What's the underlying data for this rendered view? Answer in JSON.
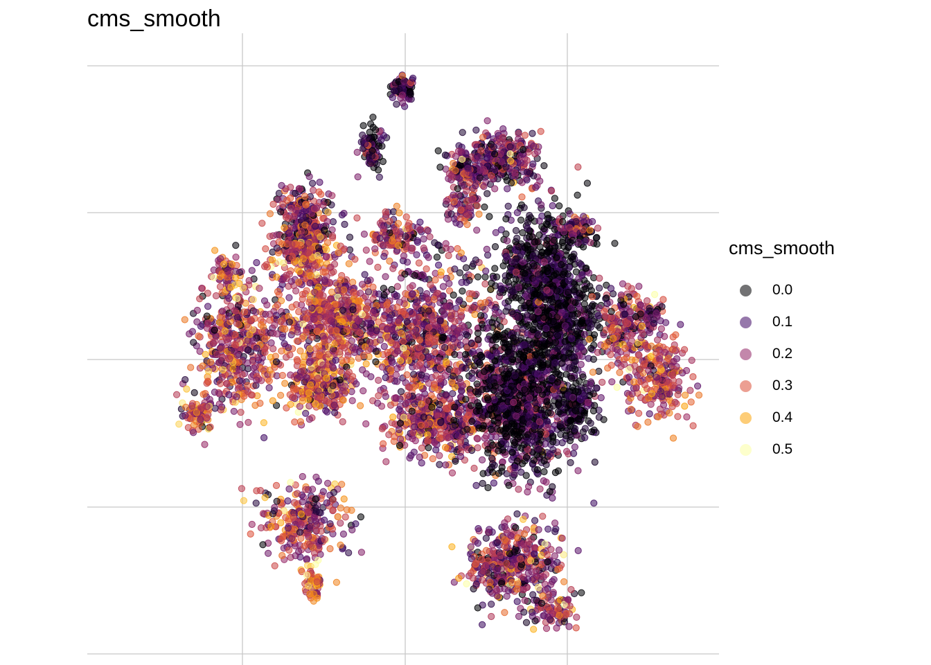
{
  "chart_data": {
    "type": "scatter",
    "title": "cms_smooth",
    "xlabel": "",
    "ylabel": "",
    "grid": true,
    "axis_ticks_labels": false,
    "color_variable": "cms_smooth",
    "point_alpha": 0.55,
    "legend": {
      "title": "cms_smooth",
      "position": "right",
      "entries": [
        {
          "label": "0.0",
          "value": 0.0,
          "color": "#000004"
        },
        {
          "label": "0.1",
          "value": 0.1,
          "color": "#420a68"
        },
        {
          "label": "0.2",
          "value": 0.2,
          "color": "#932667"
        },
        {
          "label": "0.3",
          "value": 0.3,
          "color": "#dd513a"
        },
        {
          "label": "0.4",
          "value": 0.4,
          "color": "#fca50a"
        },
        {
          "label": "0.5",
          "value": 0.5,
          "color": "#fcffa4"
        }
      ]
    },
    "clusters": [
      {
        "cx": 0.235,
        "cy": 0.505,
        "rx": 0.065,
        "ry": 0.105,
        "n": 420,
        "mean": 0.22
      },
      {
        "cx": 0.175,
        "cy": 0.61,
        "rx": 0.025,
        "ry": 0.035,
        "n": 80,
        "mean": 0.25
      },
      {
        "cx": 0.37,
        "cy": 0.565,
        "rx": 0.06,
        "ry": 0.055,
        "n": 260,
        "mean": 0.27
      },
      {
        "cx": 0.385,
        "cy": 0.46,
        "rx": 0.085,
        "ry": 0.075,
        "n": 520,
        "mean": 0.24
      },
      {
        "cx": 0.345,
        "cy": 0.79,
        "rx": 0.075,
        "ry": 0.065,
        "n": 260,
        "mean": 0.22
      },
      {
        "cx": 0.56,
        "cy": 0.625,
        "rx": 0.085,
        "ry": 0.055,
        "n": 380,
        "mean": 0.2
      },
      {
        "cx": 0.535,
        "cy": 0.485,
        "rx": 0.11,
        "ry": 0.11,
        "n": 750,
        "mean": 0.18
      },
      {
        "cx": 0.72,
        "cy": 0.385,
        "rx": 0.075,
        "ry": 0.105,
        "n": 600,
        "mean": 0.02
      },
      {
        "cx": 0.685,
        "cy": 0.6,
        "rx": 0.085,
        "ry": 0.12,
        "n": 600,
        "mean": 0.1
      },
      {
        "cx": 0.66,
        "cy": 0.205,
        "rx": 0.06,
        "ry": 0.05,
        "n": 240,
        "mean": 0.14
      },
      {
        "cx": 0.66,
        "cy": 0.86,
        "rx": 0.055,
        "ry": 0.05,
        "n": 160,
        "mean": 0.18
      },
      {
        "cx": 0.68,
        "cy": 0.85,
        "rx": 0.09,
        "ry": 0.065,
        "n": 220,
        "mean": 0.18
      },
      {
        "cx": 0.73,
        "cy": 0.93,
        "rx": 0.045,
        "ry": 0.03,
        "n": 90,
        "mean": 0.2
      },
      {
        "cx": 0.685,
        "cy": 0.58,
        "rx": 0.075,
        "ry": 0.115,
        "n": 500,
        "mean": 0.0
      },
      {
        "cx": 0.745,
        "cy": 0.47,
        "rx": 0.06,
        "ry": 0.075,
        "n": 380,
        "mean": 0.0
      },
      {
        "cx": 0.775,
        "cy": 0.6,
        "rx": 0.035,
        "ry": 0.05,
        "n": 150,
        "mean": 0.0
      },
      {
        "cx": 0.345,
        "cy": 0.305,
        "rx": 0.045,
        "ry": 0.055,
        "n": 260,
        "mean": 0.18
      },
      {
        "cx": 0.345,
        "cy": 0.36,
        "rx": 0.055,
        "ry": 0.04,
        "n": 170,
        "mean": 0.26
      },
      {
        "cx": 0.49,
        "cy": 0.325,
        "rx": 0.045,
        "ry": 0.03,
        "n": 110,
        "mean": 0.2
      },
      {
        "cx": 0.45,
        "cy": 0.19,
        "rx": 0.018,
        "ry": 0.035,
        "n": 90,
        "mean": 0.05
      },
      {
        "cx": 0.6,
        "cy": 0.22,
        "rx": 0.035,
        "ry": 0.035,
        "n": 120,
        "mean": 0.16
      },
      {
        "cx": 0.595,
        "cy": 0.285,
        "rx": 0.03,
        "ry": 0.025,
        "n": 60,
        "mean": 0.15
      },
      {
        "cx": 0.85,
        "cy": 0.475,
        "rx": 0.05,
        "ry": 0.07,
        "n": 200,
        "mean": 0.22
      },
      {
        "cx": 0.905,
        "cy": 0.56,
        "rx": 0.05,
        "ry": 0.065,
        "n": 220,
        "mean": 0.25
      },
      {
        "cx": 0.885,
        "cy": 0.455,
        "rx": 0.02,
        "ry": 0.025,
        "n": 40,
        "mean": 0.15
      },
      {
        "cx": 0.36,
        "cy": 0.885,
        "rx": 0.016,
        "ry": 0.03,
        "n": 60,
        "mean": 0.34
      },
      {
        "cx": 0.22,
        "cy": 0.385,
        "rx": 0.018,
        "ry": 0.035,
        "n": 60,
        "mean": 0.25
      },
      {
        "cx": 0.5,
        "cy": 0.09,
        "rx": 0.02,
        "ry": 0.022,
        "n": 80,
        "mean": 0.08
      },
      {
        "cx": 0.775,
        "cy": 0.315,
        "rx": 0.03,
        "ry": 0.02,
        "n": 70,
        "mean": 0.12
      }
    ]
  }
}
